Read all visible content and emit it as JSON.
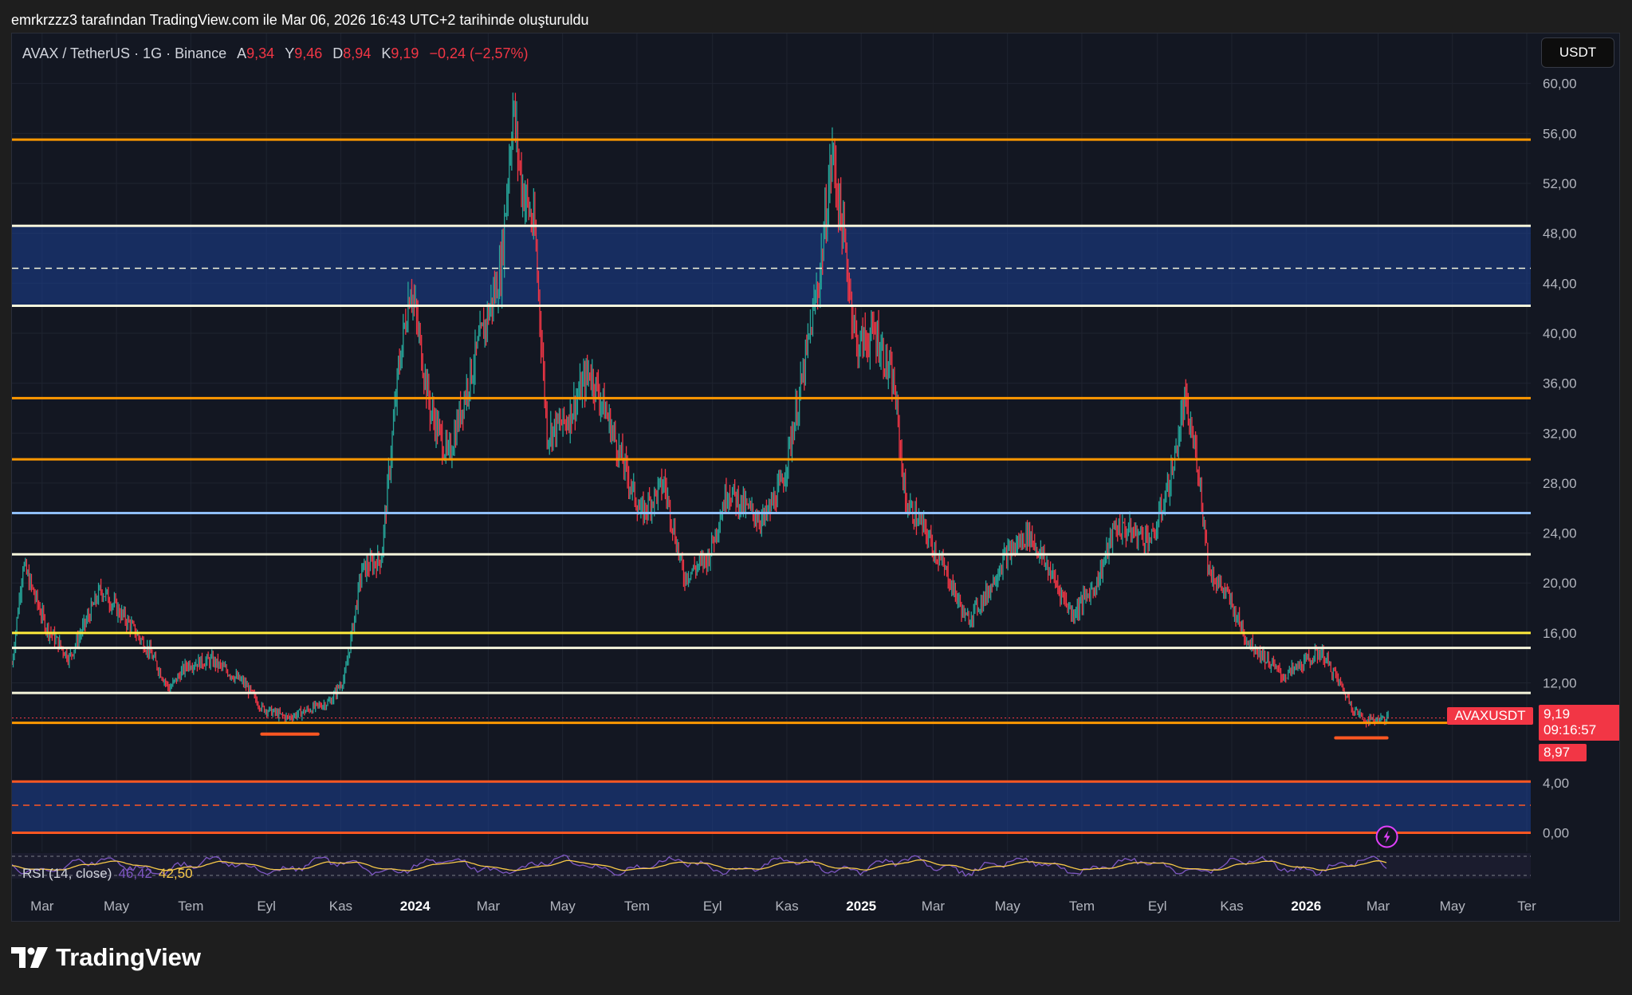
{
  "attribution": "emrkrzzz3 tarafından TradingView.com ile Mar 06, 2026 16:43 UTC+2 tarihinde oluşturuldu",
  "header": {
    "symbol": "AVAX / TetherUS · 1G · Binance",
    "open_label": "A",
    "open": "9,34",
    "high_label": "Y",
    "high": "9,46",
    "low_label": "D",
    "low": "8,94",
    "close_label": "K",
    "close": "9,19",
    "change": "−0,24 (−2,57%)"
  },
  "currency_button": "USDT",
  "price_tags": {
    "symbol": "AVAXUSDT",
    "last_price": "9,19",
    "countdown": "09:16:57",
    "low_marker": "8,97"
  },
  "rsi_legend": {
    "label": "RSI (14, close)",
    "value1": "46,42",
    "value2": "42,50"
  },
  "brand": "TradingView",
  "colors": {
    "background": "#131722",
    "up": "#26a69a",
    "down": "#f23645",
    "orange": "#ff9800",
    "white_line": "#f5f5dc",
    "blue_line": "#90bff9",
    "yellow_line": "#ffeb3b",
    "zone": "#1c3f94",
    "red_orange": "#ff5722"
  },
  "chart_data": {
    "type": "candlestick",
    "y_ticks": [
      "60,00",
      "56,00",
      "52,00",
      "48,00",
      "44,00",
      "40,00",
      "36,00",
      "32,00",
      "28,00",
      "24,00",
      "20,00",
      "16,00",
      "12,00",
      "4,00",
      "0,00"
    ],
    "x_ticks": [
      "Mar",
      "May",
      "Tem",
      "Eyl",
      "Kas",
      "2024",
      "Mar",
      "May",
      "Tem",
      "Eyl",
      "Kas",
      "2025",
      "Mar",
      "May",
      "Tem",
      "Eyl",
      "Kas",
      "2026",
      "Mar",
      "May",
      "Ter"
    ],
    "x_ticks_bold": [
      "2024",
      "2025",
      "2026"
    ],
    "x_range": [
      "2023-02-01",
      "2026-07-01"
    ],
    "ylim": [
      -1.5,
      64
    ],
    "price_path": [
      [
        "2023-02-01",
        13.5
      ],
      [
        "2023-02-10",
        21.5
      ],
      [
        "2023-03-01",
        16.5
      ],
      [
        "2023-03-20",
        14.0
      ],
      [
        "2023-04-15",
        19.5
      ],
      [
        "2023-05-10",
        16.5
      ],
      [
        "2023-05-25",
        14.5
      ],
      [
        "2023-06-10",
        11.5
      ],
      [
        "2023-06-25",
        13.5
      ],
      [
        "2023-07-15",
        13.8
      ],
      [
        "2023-08-10",
        12.0
      ],
      [
        "2023-08-25",
        10.0
      ],
      [
        "2023-09-15",
        9.2
      ],
      [
        "2023-10-01",
        9.8
      ],
      [
        "2023-10-20",
        10.5
      ],
      [
        "2023-11-01",
        12.5
      ],
      [
        "2023-11-15",
        21.0
      ],
      [
        "2023-12-01",
        22.0
      ],
      [
        "2023-12-15",
        37.0
      ],
      [
        "2023-12-25",
        44.0
      ],
      [
        "2024-01-10",
        34.0
      ],
      [
        "2024-01-25",
        30.0
      ],
      [
        "2024-02-10",
        36.0
      ],
      [
        "2024-02-25",
        41.0
      ],
      [
        "2024-03-08",
        45.0
      ],
      [
        "2024-03-18",
        58.0
      ],
      [
        "2024-03-25",
        52.0
      ],
      [
        "2024-04-05",
        48.0
      ],
      [
        "2024-04-15",
        32.0
      ],
      [
        "2024-05-01",
        33.0
      ],
      [
        "2024-05-20",
        37.0
      ],
      [
        "2024-06-01",
        34.0
      ],
      [
        "2024-06-15",
        30.0
      ],
      [
        "2024-07-01",
        25.5
      ],
      [
        "2024-07-20",
        28.0
      ],
      [
        "2024-08-05",
        20.5
      ],
      [
        "2024-08-25",
        22.0
      ],
      [
        "2024-09-10",
        27.5
      ],
      [
        "2024-09-25",
        26.0
      ],
      [
        "2024-10-10",
        25.0
      ],
      [
        "2024-10-25",
        28.0
      ],
      [
        "2024-11-10",
        36.0
      ],
      [
        "2024-11-25",
        45.0
      ],
      [
        "2024-12-05",
        54.5
      ],
      [
        "2024-12-15",
        47.0
      ],
      [
        "2024-12-25",
        39.0
      ],
      [
        "2025-01-10",
        40.0
      ],
      [
        "2025-01-25",
        35.5
      ],
      [
        "2025-02-03",
        26.5
      ],
      [
        "2025-02-20",
        24.0
      ],
      [
        "2025-03-10",
        20.5
      ],
      [
        "2025-03-25",
        17.0
      ],
      [
        "2025-04-10",
        19.0
      ],
      [
        "2025-04-25",
        22.0
      ],
      [
        "2025-05-15",
        24.0
      ],
      [
        "2025-06-01",
        21.0
      ],
      [
        "2025-06-20",
        17.5
      ],
      [
        "2025-07-10",
        20.0
      ],
      [
        "2025-07-25",
        24.5
      ],
      [
        "2025-08-10",
        24.0
      ],
      [
        "2025-08-25",
        23.5
      ],
      [
        "2025-09-10",
        29.0
      ],
      [
        "2025-09-20",
        34.5
      ],
      [
        "2025-10-01",
        29.5
      ],
      [
        "2025-10-10",
        21.0
      ],
      [
        "2025-10-25",
        19.0
      ],
      [
        "2025-11-10",
        15.5
      ],
      [
        "2025-11-25",
        14.0
      ],
      [
        "2025-12-10",
        12.5
      ],
      [
        "2025-12-25",
        13.5
      ],
      [
        "2026-01-10",
        14.5
      ],
      [
        "2026-01-25",
        12.0
      ],
      [
        "2026-02-05",
        10.0
      ],
      [
        "2026-02-15",
        9.0
      ],
      [
        "2026-03-06",
        9.2
      ]
    ],
    "horizontal_levels": [
      {
        "price": 55.5,
        "color": "orange"
      },
      {
        "price": 48.6,
        "color": "white_line"
      },
      {
        "price": 45.2,
        "color": "white_line",
        "dashed": true
      },
      {
        "price": 42.2,
        "color": "white_line"
      },
      {
        "price": 34.8,
        "color": "orange"
      },
      {
        "price": 29.9,
        "color": "orange"
      },
      {
        "price": 25.6,
        "color": "blue_line"
      },
      {
        "price": 22.3,
        "color": "white_line"
      },
      {
        "price": 16.0,
        "color": "yellow_line"
      },
      {
        "price": 14.8,
        "color": "white_line"
      },
      {
        "price": 11.2,
        "color": "white_line"
      },
      {
        "price": 8.8,
        "color": "orange"
      },
      {
        "price": 4.1,
        "color": "red_orange"
      },
      {
        "price": 2.2,
        "color": "red_orange",
        "dashed": true
      },
      {
        "price": 0.0,
        "color": "red_orange"
      }
    ],
    "zones": [
      {
        "from": 42.2,
        "to": 48.6
      },
      {
        "from": 0.0,
        "to": 4.1
      }
    ],
    "annotations": [
      {
        "type": "underline",
        "from": "2023-08-25",
        "to": "2023-10-10",
        "price": 7.9
      },
      {
        "type": "underline",
        "from": "2026-01-22",
        "to": "2026-03-05",
        "price": 7.6
      }
    ]
  }
}
